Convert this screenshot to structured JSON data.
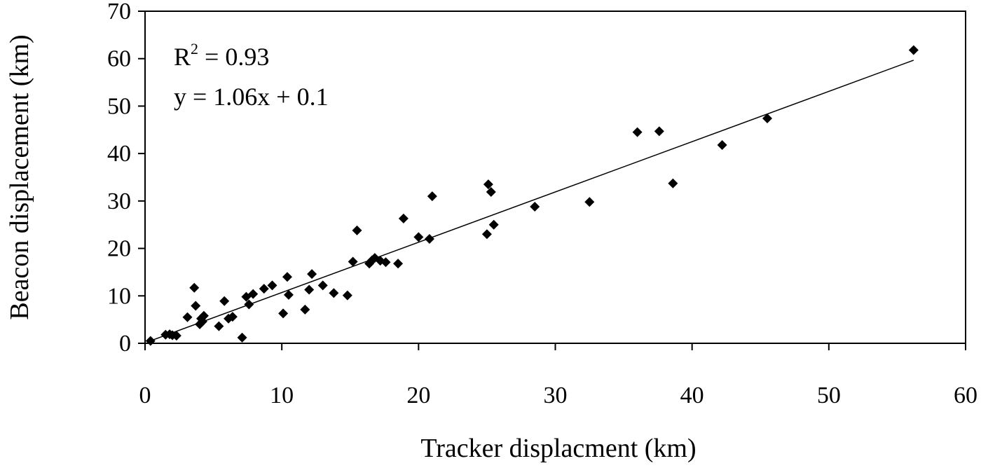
{
  "chart_data": {
    "type": "scatter",
    "xlabel": "Tracker displacment (km)",
    "ylabel": "Beacon displacement (km)",
    "xlim": [
      0,
      60
    ],
    "ylim": [
      0,
      70
    ],
    "x_ticks": [
      0,
      10,
      20,
      30,
      40,
      50,
      60
    ],
    "y_ticks": [
      0,
      10,
      20,
      30,
      40,
      50,
      60,
      70
    ],
    "annotations": {
      "r2_prefix": "R",
      "r2_sup": "2",
      "r2_value": " = 0.93",
      "equation": "y = 1.06x + 0.1"
    },
    "trendline": {
      "slope": 1.06,
      "intercept": 0.1,
      "x_range": [
        0.3,
        56.2
      ]
    },
    "marker": "diamond",
    "points": [
      [
        0.4,
        0.5
      ],
      [
        1.5,
        1.8
      ],
      [
        1.8,
        1.9
      ],
      [
        2.0,
        1.7
      ],
      [
        2.3,
        1.6
      ],
      [
        3.1,
        5.5
      ],
      [
        3.6,
        11.7
      ],
      [
        3.7,
        7.9
      ],
      [
        4.0,
        4.0
      ],
      [
        4.1,
        5.2
      ],
      [
        4.2,
        4.6
      ],
      [
        4.3,
        5.8
      ],
      [
        5.4,
        3.6
      ],
      [
        5.8,
        8.9
      ],
      [
        6.1,
        5.2
      ],
      [
        6.4,
        5.6
      ],
      [
        7.1,
        1.2
      ],
      [
        7.4,
        9.8
      ],
      [
        7.6,
        8.2
      ],
      [
        7.9,
        10.4
      ],
      [
        8.7,
        11.5
      ],
      [
        9.3,
        12.2
      ],
      [
        10.1,
        6.3
      ],
      [
        10.4,
        14.0
      ],
      [
        10.5,
        10.2
      ],
      [
        11.7,
        7.1
      ],
      [
        12.0,
        11.3
      ],
      [
        12.2,
        14.6
      ],
      [
        13.0,
        12.2
      ],
      [
        13.8,
        10.6
      ],
      [
        14.8,
        10.1
      ],
      [
        15.2,
        17.2
      ],
      [
        15.5,
        23.8
      ],
      [
        16.4,
        16.8
      ],
      [
        16.6,
        17.5
      ],
      [
        16.8,
        18.0
      ],
      [
        17.2,
        17.4
      ],
      [
        17.6,
        17.1
      ],
      [
        18.5,
        16.8
      ],
      [
        18.9,
        26.3
      ],
      [
        20.0,
        22.4
      ],
      [
        20.8,
        22.0
      ],
      [
        21.0,
        31.0
      ],
      [
        25.0,
        23.0
      ],
      [
        25.1,
        33.5
      ],
      [
        25.3,
        31.9
      ],
      [
        25.5,
        25.0
      ],
      [
        28.5,
        28.8
      ],
      [
        32.5,
        29.8
      ],
      [
        36.0,
        44.5
      ],
      [
        37.6,
        44.7
      ],
      [
        38.6,
        33.7
      ],
      [
        42.2,
        41.8
      ],
      [
        45.5,
        47.4
      ],
      [
        56.2,
        61.8
      ]
    ]
  }
}
